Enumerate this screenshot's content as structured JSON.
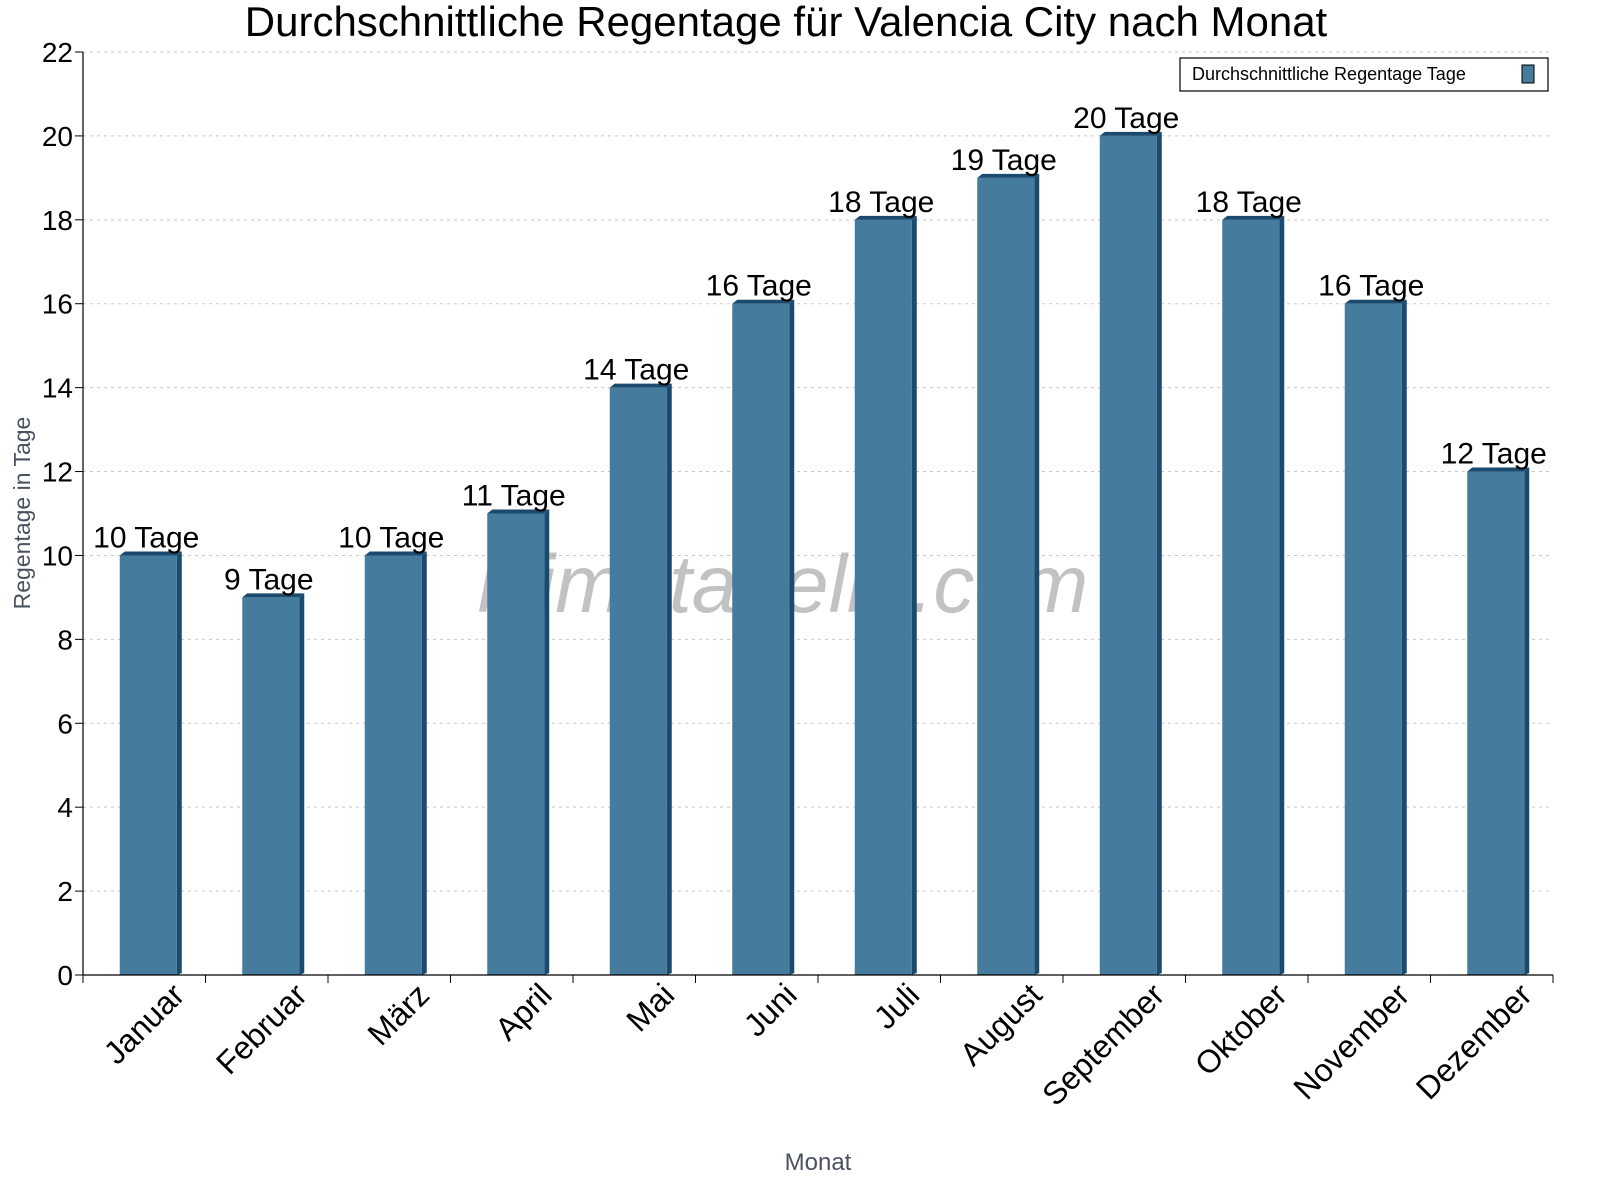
{
  "chart_data": {
    "type": "bar",
    "title": "Durchschnittliche Regentage für Valencia City nach Monat",
    "xlabel": "Monat",
    "ylabel": "Regentage in Tage",
    "categories": [
      "Januar",
      "Februar",
      "März",
      "April",
      "Mai",
      "Juni",
      "Juli",
      "August",
      "September",
      "Oktober",
      "November",
      "Dezember"
    ],
    "series": [
      {
        "name": "Durchschnittliche Regentage Tage",
        "values": [
          10,
          9,
          10,
          11,
          14,
          16,
          18,
          19,
          20,
          18,
          16,
          12
        ]
      }
    ],
    "data_labels": [
      "10 Tage",
      "9 Tage",
      "10 Tage",
      "11 Tage",
      "14 Tage",
      "16 Tage",
      "18 Tage",
      "19 Tage",
      "20 Tage",
      "18 Tage",
      "16 Tage",
      "12 Tage"
    ],
    "ylim": [
      0,
      22
    ],
    "yticks": [
      0,
      2,
      4,
      6,
      8,
      10,
      12,
      14,
      16,
      18,
      20,
      22
    ],
    "grid": true,
    "legend_placement": "top-right",
    "watermark": "klimatabelle.com",
    "colors": {
      "bar_face": "#457b9d",
      "bar_side": "#1a4a6e",
      "grid": "#c8c8c8"
    }
  }
}
